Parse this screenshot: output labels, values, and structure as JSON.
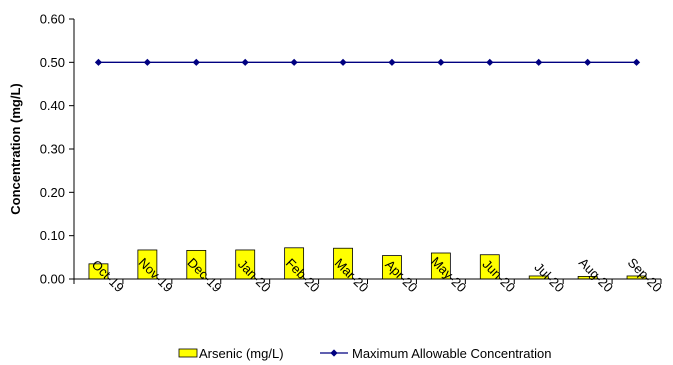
{
  "chart_data": {
    "type": "bar",
    "ylabel": "Concentration (mg/L)",
    "ylim": [
      0,
      0.6
    ],
    "yticks": [
      "0.00",
      "0.10",
      "0.20",
      "0.30",
      "0.40",
      "0.50",
      "0.60"
    ],
    "categories": [
      "Oct-19",
      "Nov-19",
      "Dec-19",
      "Jan-20",
      "Feb-20",
      "Mar-20",
      "Apr-20",
      "May-20",
      "Jun-20",
      "Jul-20",
      "Aug-20",
      "Sep-20"
    ],
    "series": [
      {
        "name": "Arsenic (mg/L)",
        "kind": "bar",
        "color": "#ffff00",
        "values": [
          0.035,
          0.067,
          0.066,
          0.067,
          0.072,
          0.071,
          0.054,
          0.06,
          0.056,
          0.007,
          0.006,
          0.007
        ]
      },
      {
        "name": "Maximum Allowable Concentration",
        "kind": "line",
        "color": "#000080",
        "values": [
          0.5,
          0.5,
          0.5,
          0.5,
          0.5,
          0.5,
          0.5,
          0.5,
          0.5,
          0.5,
          0.5,
          0.5
        ]
      }
    ],
    "legend_position": "bottom",
    "grid": false
  }
}
